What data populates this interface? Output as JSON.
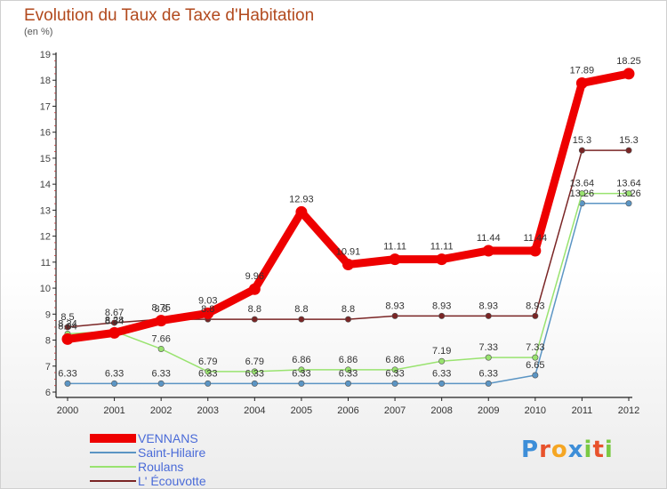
{
  "chart_data": {
    "type": "line",
    "title": "Evolution du Taux de Taxe d'Habitation",
    "ylabel": "(en %)",
    "xlabel": "",
    "x": [
      "2000",
      "2001",
      "2002",
      "2003",
      "2004",
      "2005",
      "2006",
      "2007",
      "2008",
      "2009",
      "2010",
      "2011",
      "2012"
    ],
    "ylim": [
      6,
      19
    ],
    "yticks": [
      "6",
      "7",
      "8",
      "9",
      "10",
      "11",
      "12",
      "13",
      "14",
      "15",
      "16",
      "17",
      "18",
      "19"
    ],
    "grid": false,
    "legend_placement": "bottom-left",
    "series": [
      {
        "name": "Saint-Hilaire",
        "color": "#5b95c4",
        "values": [
          6.33,
          6.33,
          6.33,
          6.33,
          6.33,
          6.33,
          6.33,
          6.33,
          6.33,
          6.33,
          6.65,
          13.26,
          13.26
        ],
        "labels": [
          "6.33",
          "6.33",
          "6.33",
          "6.33",
          "6.33",
          "6.33",
          "6.33",
          "6.33",
          "6.33",
          "6.33",
          "6.65",
          "13.26",
          "13.26"
        ]
      },
      {
        "name": "Roulans",
        "color": "#99e36f",
        "values": [
          8.24,
          8.34,
          7.66,
          6.79,
          6.79,
          6.86,
          6.86,
          6.86,
          7.19,
          7.33,
          7.33,
          13.64,
          13.64
        ],
        "labels": [
          "8.24",
          "8.34",
          "7.66",
          "6.79",
          "6.79",
          "6.86",
          "6.86",
          "6.86",
          "7.19",
          "7.33",
          "7.33",
          "13.64",
          "13.64"
        ]
      },
      {
        "name": "L' Écouvotte",
        "color": "#7a2525",
        "values": [
          8.5,
          8.67,
          8.8,
          8.8,
          8.8,
          8.8,
          8.8,
          8.93,
          8.93,
          8.93,
          8.93,
          15.3,
          15.3
        ],
        "labels": [
          "8.5",
          "8.67",
          "8.8",
          "8.8",
          "8.8",
          "8.8",
          "8.8",
          "8.93",
          "8.93",
          "8.93",
          "8.93",
          "15.3",
          "15.3"
        ]
      },
      {
        "name": "VENNANS",
        "color": "#ee0000",
        "values": [
          8.04,
          8.28,
          8.75,
          9.03,
          9.96,
          12.93,
          10.91,
          11.11,
          11.11,
          11.44,
          11.44,
          17.89,
          18.25
        ],
        "labels": [
          "8.04",
          "8.28",
          "8.75",
          "9.03",
          "9.96",
          "12.93",
          "10.91",
          "11.11",
          "11.11",
          "11.44",
          "11.44",
          "17.89",
          "18.25"
        ]
      }
    ]
  },
  "legend": [
    {
      "name": "VENNANS",
      "color": "#ee0000",
      "text_color": "#4a6bd8"
    },
    {
      "name": "Saint-Hilaire",
      "color": "#5b95c4",
      "text_color": "#4a6bd8"
    },
    {
      "name": "Roulans",
      "color": "#99e36f",
      "text_color": "#4a6bd8"
    },
    {
      "name": "L' Écouvotte",
      "color": "#7a2525",
      "text_color": "#4a6bd8"
    }
  ],
  "brand": {
    "letters": [
      "P",
      "r",
      "o",
      "x",
      "i",
      "t",
      "i"
    ],
    "colors": [
      "#3d8ed8",
      "#e8522c",
      "#f5a623",
      "#3d8ed8",
      "#7ac943",
      "#e8522c",
      "#7ac943"
    ]
  }
}
